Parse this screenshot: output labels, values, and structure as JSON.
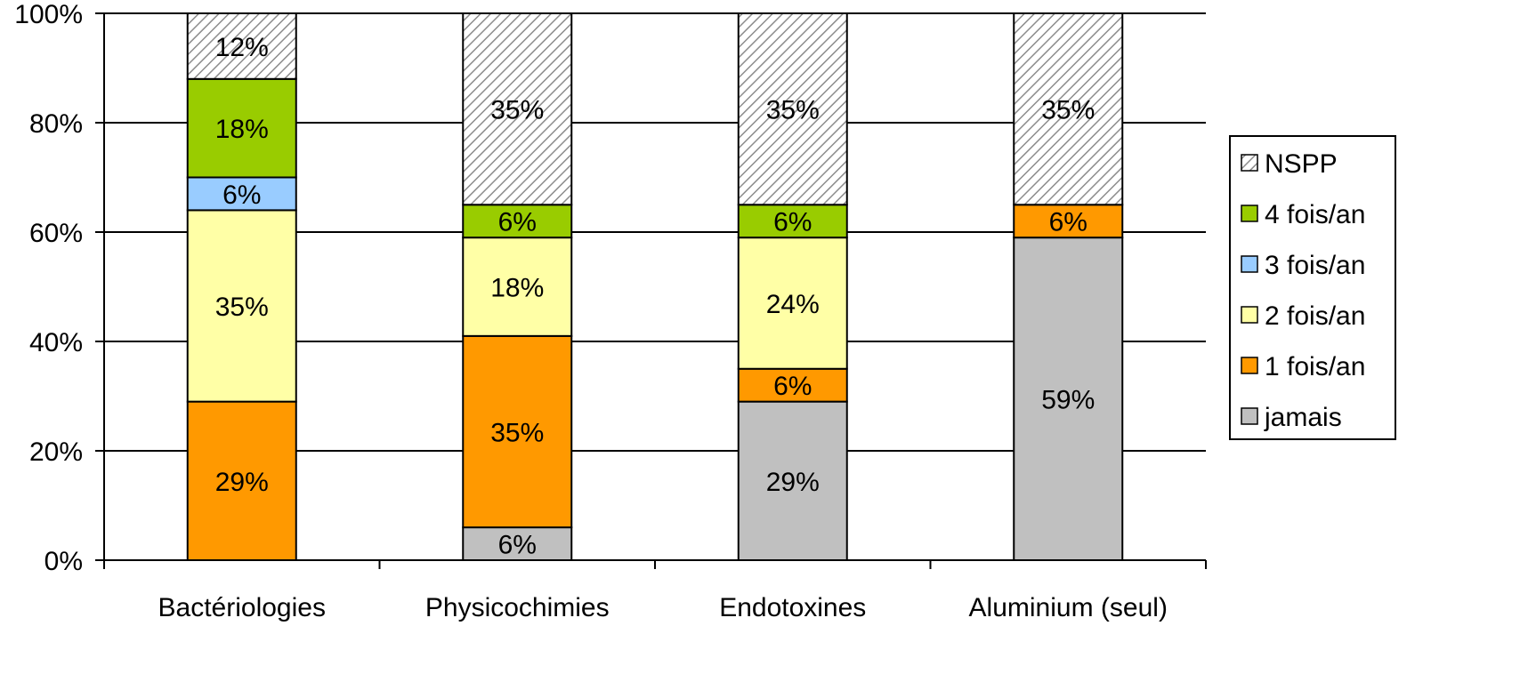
{
  "chart_data": {
    "type": "bar",
    "stacked": true,
    "title": "",
    "xlabel": "",
    "ylabel": "",
    "ylim": [
      0,
      100
    ],
    "y_ticks": [
      "0%",
      "20%",
      "40%",
      "60%",
      "80%",
      "100%"
    ],
    "categories": [
      "Bactériologies",
      "Physicochimies",
      "Endotoxines",
      "Aluminium (seul)"
    ],
    "series": [
      {
        "name": "jamais",
        "color": "#c0c0c0",
        "pattern": "solid",
        "values": [
          0,
          6,
          29,
          59
        ],
        "labels": [
          "",
          "6%",
          "29%",
          "59%"
        ]
      },
      {
        "name": "1 fois/an",
        "color": "#ff9900",
        "pattern": "solid",
        "values": [
          29,
          35,
          6,
          6
        ],
        "labels": [
          "29%",
          "35%",
          "6%",
          "6%"
        ]
      },
      {
        "name": "2 fois/an",
        "color": "#ffffa6",
        "pattern": "solid",
        "values": [
          35,
          18,
          24,
          0
        ],
        "labels": [
          "35%",
          "18%",
          "24%",
          ""
        ]
      },
      {
        "name": "3 fois/an",
        "color": "#99ccff",
        "pattern": "solid",
        "values": [
          6,
          0,
          0,
          0
        ],
        "labels": [
          "6%",
          "",
          "",
          ""
        ]
      },
      {
        "name": "4 fois/an",
        "color": "#99cc00",
        "pattern": "solid",
        "values": [
          18,
          6,
          6,
          0
        ],
        "labels": [
          "18%",
          "6%",
          "6%",
          ""
        ]
      },
      {
        "name": "NSPP",
        "color": "#ffffff",
        "pattern": "hatch",
        "values": [
          12,
          35,
          35,
          35
        ],
        "labels": [
          "12%",
          "35%",
          "35%",
          "35%"
        ]
      }
    ],
    "legend": {
      "position": "right",
      "order": [
        "NSPP",
        "4 fois/an",
        "3 fois/an",
        "2 fois/an",
        "1 fois/an",
        "jamais"
      ]
    },
    "grid": true
  }
}
